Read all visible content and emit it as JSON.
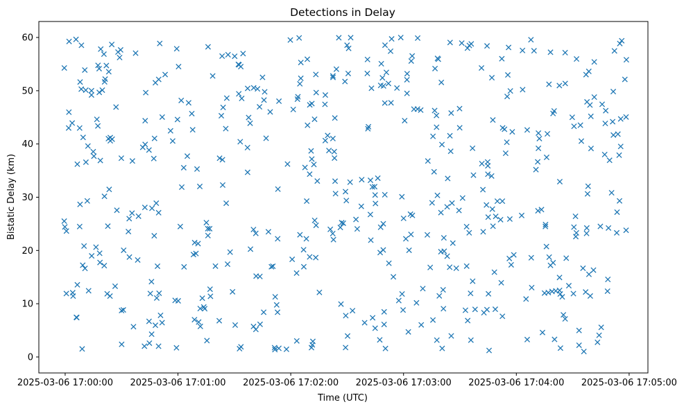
{
  "chart_data": {
    "type": "scatter",
    "title": "Detections in Delay",
    "xlabel": "Time (UTC)",
    "ylabel": "Bistatic Delay (km)",
    "x_tick_labels": [
      "2025-03-06 17:00:00",
      "2025-03-06 17:01:00",
      "2025-03-06 17:02:00",
      "2025-03-06 17:03:00",
      "2025-03-06 17:04:00",
      "2025-03-06 17:05:00"
    ],
    "x_tick_values": [
      0,
      60,
      120,
      180,
      240,
      300
    ],
    "y_ticks": [
      0,
      10,
      20,
      30,
      40,
      50,
      60
    ],
    "xlim": [
      "2025-03-06 16:59:46",
      "2025-03-06 17:05:10"
    ],
    "ylim": [
      -3.0,
      63.0
    ],
    "marker": "x",
    "grid": false,
    "legend": "none",
    "color": "#1f77b4",
    "point_count_approx": 560,
    "time_span": [
      "2025-03-06 16:59:59",
      "2025-03-06 17:04:59"
    ],
    "delay_range_km": [
      1,
      60
    ],
    "seed": 20250306,
    "series": [
      {
        "name": "",
        "points": [
          {
            "t": "2025-03-06 17:00:23",
            "delay_km": 41.0
          },
          {
            "t": "2025-03-06 17:00:24",
            "delay_km": 40.6
          },
          {
            "t": "2025-03-06 17:00:25",
            "delay_km": 40.9
          },
          {
            "t": "2025-03-06 17:00:24",
            "delay_km": 41.2
          },
          {
            "t": "2025-03-06 17:04:15",
            "delay_km": 12.0
          },
          {
            "t": "2025-03-06 17:04:17",
            "delay_km": 12.1
          },
          {
            "t": "2025-03-06 17:04:19",
            "delay_km": 12.3
          },
          {
            "t": "2025-03-06 17:04:21",
            "delay_km": 12.4
          },
          {
            "t": "2025-03-06 17:04:23",
            "delay_km": 12.5
          },
          {
            "t": "2025-03-06 17:03:35",
            "delay_km": 58.5
          },
          {
            "t": "2025-03-06 17:03:34",
            "delay_km": 58.0
          },
          {
            "t": "2025-03-06 17:03:36",
            "delay_km": 58.8
          },
          {
            "t": "2025-03-06 17:00:14",
            "delay_km": 50.0
          },
          {
            "t": "2025-03-06 17:00:14",
            "delay_km": 49.2
          },
          {
            "t": "2025-03-06 17:00:48",
            "delay_km": 51.5
          }
        ]
      }
    ]
  }
}
